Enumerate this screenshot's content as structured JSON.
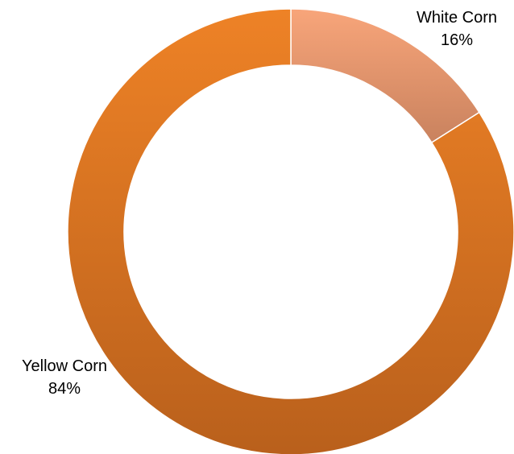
{
  "chart_data": {
    "type": "pie",
    "variant": "donut",
    "slices": [
      {
        "label": "White Corn",
        "value": 16,
        "value_label": "16%",
        "color": "#f8a57a",
        "color_end": "#c9825e"
      },
      {
        "label": "Yellow Corn",
        "value": 84,
        "value_label": "84%",
        "color": "#ee8226",
        "color_end": "#b9601c"
      }
    ],
    "title": "",
    "legend": "none",
    "start_angle_deg": 0,
    "direction": "clockwise"
  }
}
